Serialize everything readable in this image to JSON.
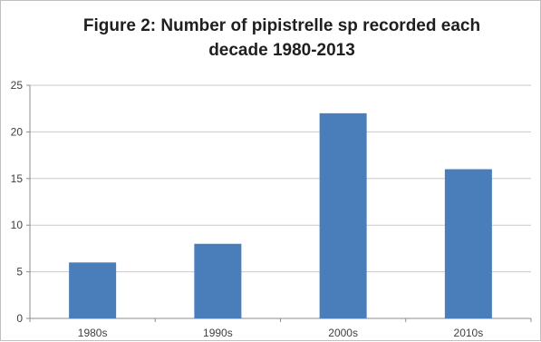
{
  "chart_data": {
    "type": "bar",
    "title": "Figure 2: Number of pipistrelle sp recorded each\ndecade 1980-2013",
    "categories": [
      "1980s",
      "1990s",
      "2000s",
      "2010s"
    ],
    "values": [
      6,
      8,
      22,
      16
    ],
    "xlabel": "",
    "ylabel": "",
    "ylim": [
      0,
      25
    ],
    "yticks": [
      "0",
      "5",
      "10",
      "15",
      "20",
      "25"
    ],
    "grid": true,
    "legend": "none",
    "bar_color": "#4a7ebb"
  }
}
